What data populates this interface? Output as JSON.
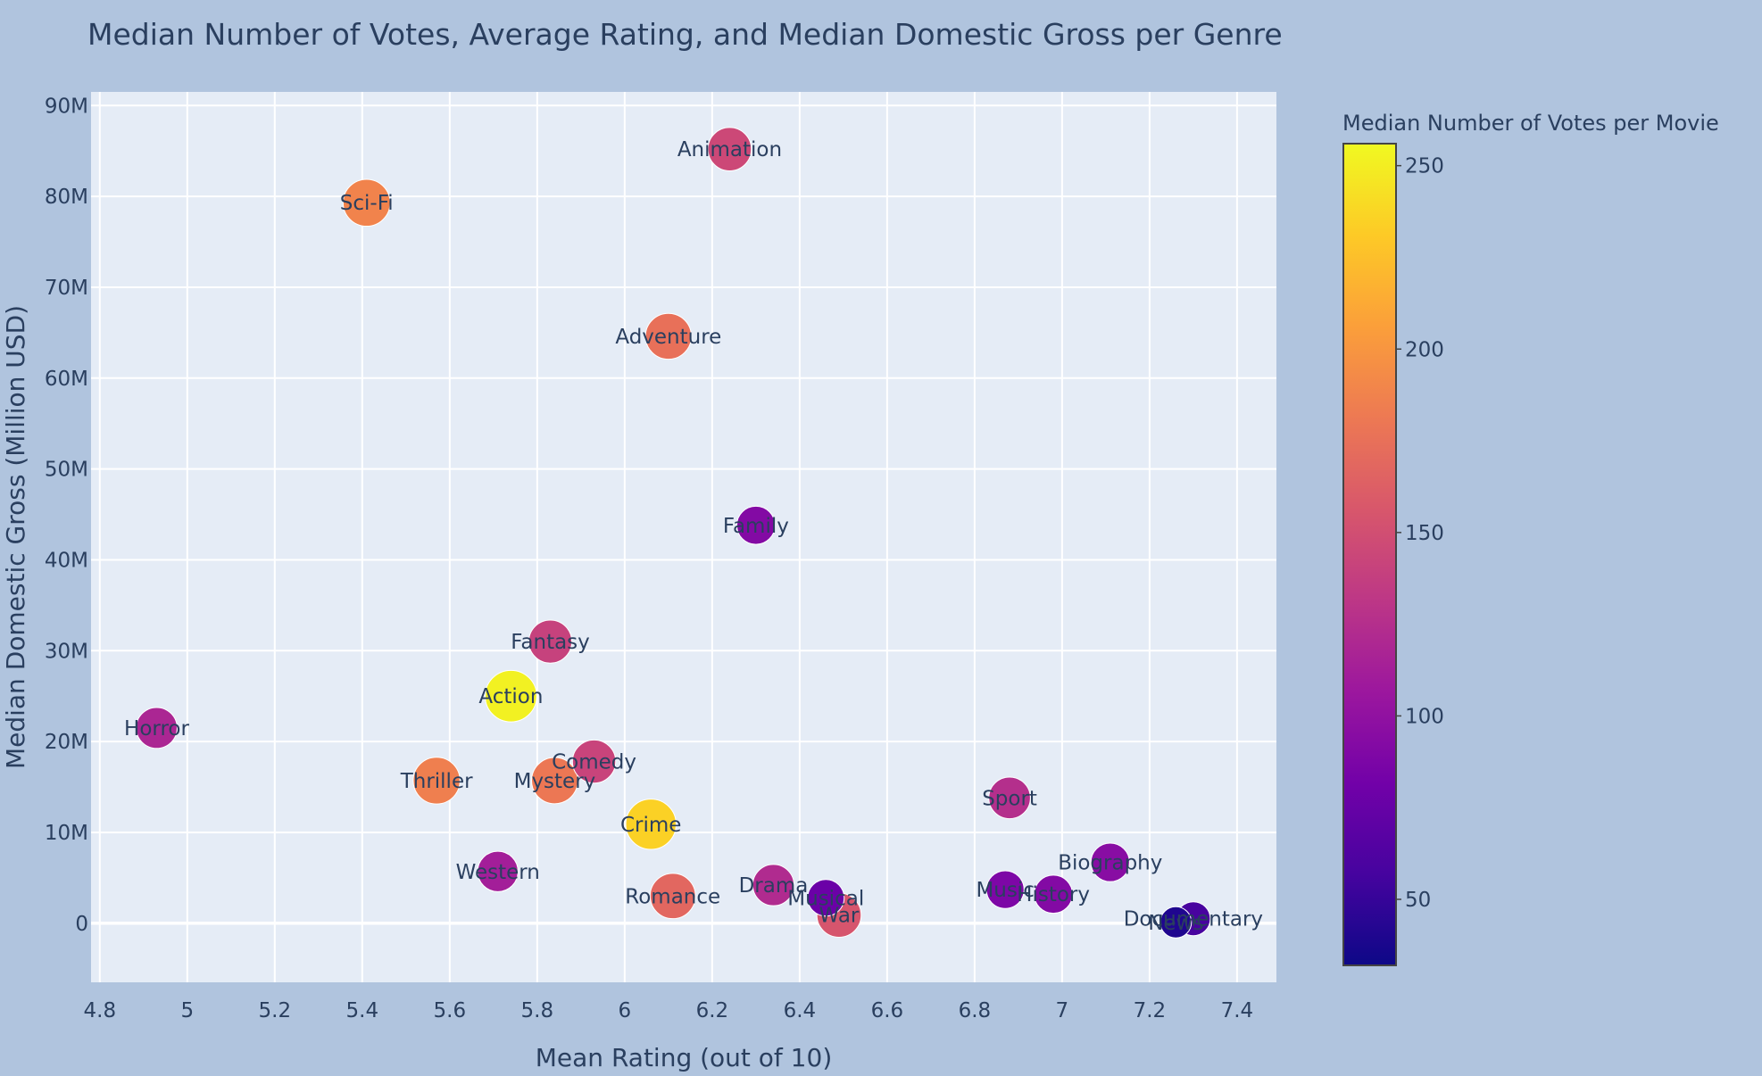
{
  "chart_data": {
    "type": "scatter",
    "title": "Median Number of Votes, Average Rating, and Median Domestic Gross per Genre",
    "xlabel": "Mean Rating (out of 10)",
    "ylabel": "Median Domestic Gross (Million USD)",
    "xlim": [
      4.78,
      7.49
    ],
    "ylim": [
      -6.5,
      91.5
    ],
    "x_ticks": [
      4.8,
      5,
      5.2,
      5.4,
      5.6,
      5.8,
      6,
      6.2,
      6.4,
      6.6,
      6.8,
      7,
      7.2,
      7.4
    ],
    "x_tick_labels": [
      "4.8",
      "5",
      "5.2",
      "5.4",
      "5.6",
      "5.8",
      "6",
      "6.2",
      "6.4",
      "6.6",
      "6.8",
      "7",
      "7.2",
      "7.4"
    ],
    "y_ticks": [
      0,
      10,
      20,
      30,
      40,
      50,
      60,
      70,
      80,
      90
    ],
    "y_tick_labels": [
      "0",
      "10M",
      "20M",
      "30M",
      "40M",
      "50M",
      "60M",
      "70M",
      "80M",
      "90M"
    ],
    "grid": true,
    "colorbar": {
      "title": "Median Number of Votes per Movie",
      "range": [
        32,
        256
      ],
      "ticks": [
        50,
        100,
        150,
        200,
        250
      ],
      "tick_labels": [
        "50",
        "100",
        "150",
        "200",
        "250"
      ],
      "colorscale": [
        "#0d0887",
        "#46039f",
        "#7201a8",
        "#9c179e",
        "#bd3786",
        "#d8576b",
        "#ed7953",
        "#fb9f3a",
        "#fdca26",
        "#f0f921"
      ]
    },
    "points": [
      {
        "label": "Animation",
        "x": 6.24,
        "y": 85.2,
        "votes": 145
      },
      {
        "label": "Sci-Fi",
        "x": 5.41,
        "y": 79.3,
        "votes": 188
      },
      {
        "label": "Adventure",
        "x": 6.1,
        "y": 64.6,
        "votes": 175
      },
      {
        "label": "Family",
        "x": 6.3,
        "y": 43.8,
        "votes": 92
      },
      {
        "label": "Fantasy",
        "x": 5.83,
        "y": 31.0,
        "votes": 140
      },
      {
        "label": "Action",
        "x": 5.74,
        "y": 25.0,
        "votes": 252
      },
      {
        "label": "Horror",
        "x": 4.93,
        "y": 21.5,
        "votes": 118
      },
      {
        "label": "Comedy",
        "x": 5.93,
        "y": 17.8,
        "votes": 142
      },
      {
        "label": "Thriller",
        "x": 5.57,
        "y": 15.7,
        "votes": 185
      },
      {
        "label": "Mystery",
        "x": 5.84,
        "y": 15.7,
        "votes": 180
      },
      {
        "label": "Sport",
        "x": 6.88,
        "y": 13.8,
        "votes": 125
      },
      {
        "label": "Crime",
        "x": 6.06,
        "y": 10.9,
        "votes": 235
      },
      {
        "label": "Biography",
        "x": 7.11,
        "y": 6.7,
        "votes": 95
      },
      {
        "label": "Western",
        "x": 5.71,
        "y": 5.7,
        "votes": 112
      },
      {
        "label": "Drama",
        "x": 6.34,
        "y": 4.2,
        "votes": 122
      },
      {
        "label": "Music",
        "x": 6.87,
        "y": 3.7,
        "votes": 88
      },
      {
        "label": "History",
        "x": 6.98,
        "y": 3.2,
        "votes": 92
      },
      {
        "label": "Romance",
        "x": 6.11,
        "y": 3.0,
        "votes": 168
      },
      {
        "label": "Musical",
        "x": 6.46,
        "y": 2.8,
        "votes": 78
      },
      {
        "label": "War",
        "x": 6.49,
        "y": 0.9,
        "votes": 155
      },
      {
        "label": "Documentary",
        "x": 7.3,
        "y": 0.5,
        "votes": 58
      },
      {
        "label": "News",
        "x": 7.26,
        "y": 0.1,
        "votes": 40
      }
    ]
  }
}
